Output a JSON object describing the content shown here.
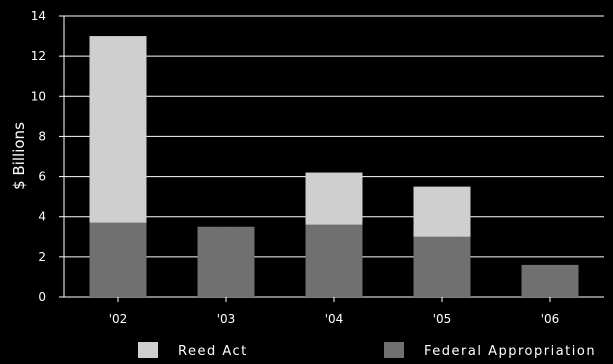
{
  "chart_data": {
    "type": "bar",
    "stacked": true,
    "categories": [
      "'02",
      "'03",
      "'04",
      "'05",
      "'06"
    ],
    "series": [
      {
        "name": "Federal Appropriation",
        "values": [
          3.7,
          3.5,
          3.6,
          3.0,
          1.6
        ],
        "color": "#6f6f6f"
      },
      {
        "name": "Reed Act",
        "values": [
          9.3,
          0,
          2.6,
          2.5,
          0
        ],
        "color": "#cfcfcf"
      }
    ],
    "ylabel": "$ Billions",
    "xlabel": "",
    "ylim": [
      0,
      14
    ],
    "yticks": [
      0,
      2,
      4,
      6,
      8,
      10,
      12,
      14
    ],
    "grid": true,
    "legend_position": "bottom"
  }
}
